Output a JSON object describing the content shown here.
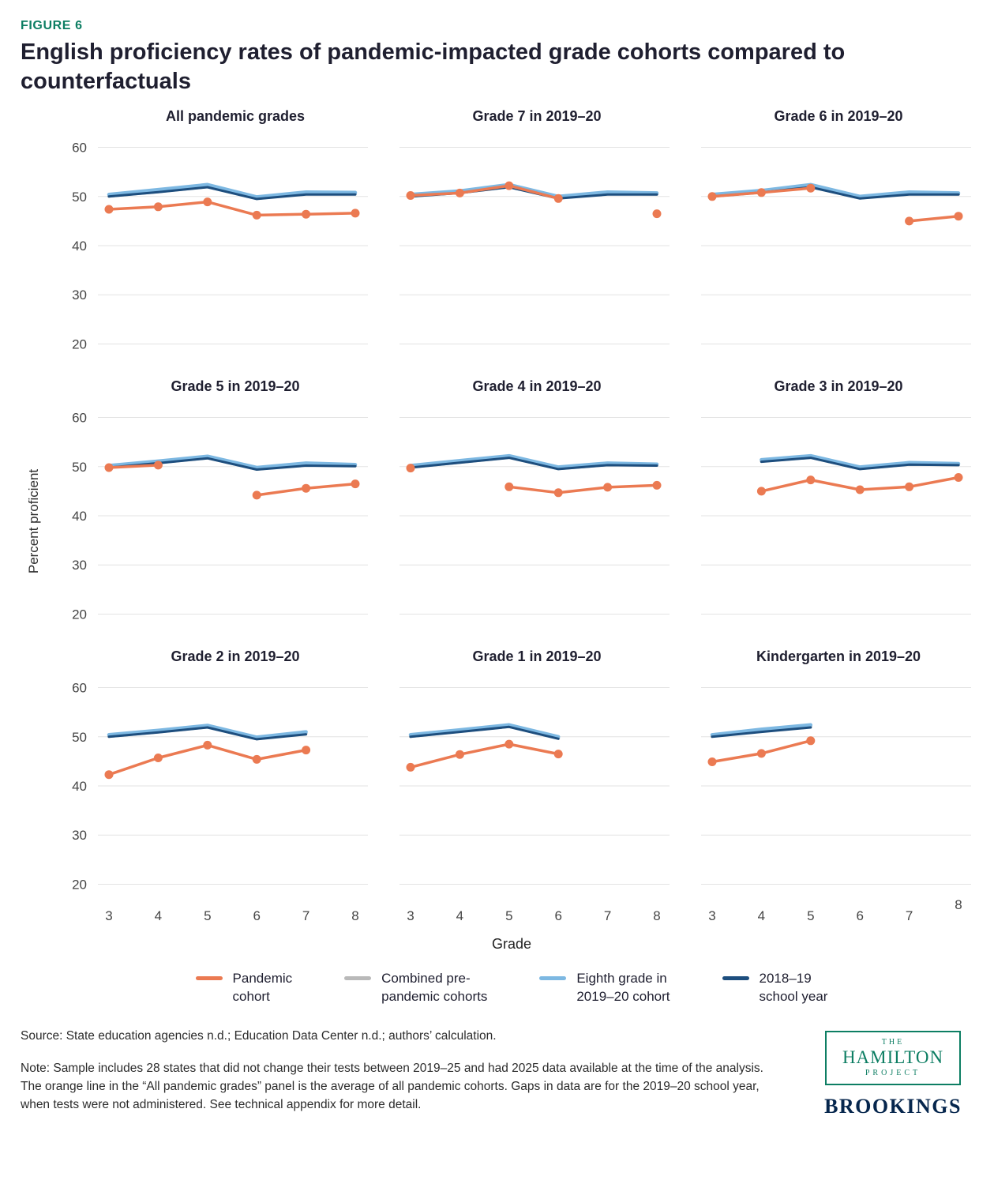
{
  "figure": {
    "label": "FIGURE 6",
    "title": "English proficiency rates of pandemic-impacted grade cohorts compared to counterfactuals"
  },
  "axes": {
    "ylabel": "Percent proficient",
    "xlabel": "Grade",
    "yticks": [
      60,
      50,
      40,
      30,
      20
    ],
    "xticks": [
      3,
      4,
      5,
      6,
      7,
      8
    ],
    "ylim": [
      20,
      60
    ],
    "grid": true
  },
  "colors": {
    "pandemic": "#EB7A52",
    "prepandemic": "#B9B9B9",
    "eighth_grade": "#7DB8E2",
    "school_2018_19": "#1D4E7E",
    "accent_teal": "#0D7E63",
    "brookings_navy": "#06264D",
    "grid": "#E3E3E3"
  },
  "legend": {
    "position": "bottom",
    "items": [
      {
        "label": "Pandemic\ncohort",
        "key": "pandemic"
      },
      {
        "label": "Combined pre-\npandemic cohorts",
        "key": "prepandemic"
      },
      {
        "label": "Eighth grade in\n2019–20 cohort",
        "key": "eighth_grade"
      },
      {
        "label": "2018–19\nschool year",
        "key": "school_2018_19"
      }
    ]
  },
  "chart_data": [
    {
      "type": "line",
      "title": "All pandemic grades",
      "x": [
        3,
        4,
        5,
        6,
        7,
        8
      ],
      "ylim": [
        20,
        60
      ],
      "series": [
        {
          "name": "Combined pre-pandemic cohorts",
          "key": "prepandemic",
          "values": [
            50.1,
            51.0,
            52.0,
            49.6,
            50.6,
            50.6
          ]
        },
        {
          "name": "Eighth grade in 2019–20 cohort",
          "key": "eighth_grade",
          "values": [
            50.4,
            51.4,
            52.4,
            49.9,
            50.9,
            50.8
          ]
        },
        {
          "name": "2018–19 school year",
          "key": "school_2018_19",
          "values": [
            50.0,
            50.9,
            51.9,
            49.5,
            50.4,
            50.4
          ]
        },
        {
          "name": "Pandemic cohort",
          "key": "pandemic",
          "values": [
            47.4,
            47.9,
            48.9,
            46.2,
            46.4,
            46.6
          ]
        }
      ]
    },
    {
      "type": "line",
      "title": "Grade 7 in 2019–20",
      "x": [
        3,
        4,
        5,
        6,
        7,
        8
      ],
      "ylim": [
        20,
        60
      ],
      "series": [
        {
          "name": "Combined pre-pandemic cohorts",
          "key": "prepandemic",
          "values": [
            50.1,
            50.8,
            52.0,
            49.7,
            50.6,
            50.5
          ]
        },
        {
          "name": "Eighth grade in 2019–20 cohort",
          "key": "eighth_grade",
          "values": [
            50.4,
            51.1,
            52.4,
            50.0,
            50.9,
            50.7
          ]
        },
        {
          "name": "2018–19 school year",
          "key": "school_2018_19",
          "values": [
            50.0,
            50.7,
            51.9,
            49.6,
            50.4,
            50.4
          ]
        },
        {
          "name": "Pandemic cohort",
          "key": "pandemic",
          "values": [
            50.2,
            50.7,
            52.2,
            49.6,
            null,
            46.5
          ]
        }
      ]
    },
    {
      "type": "line",
      "title": "Grade 6 in 2019–20",
      "x": [
        3,
        4,
        5,
        6,
        7,
        8
      ],
      "ylim": [
        20,
        60
      ],
      "series": [
        {
          "name": "Combined pre-pandemic cohorts",
          "key": "prepandemic",
          "values": [
            50.1,
            50.9,
            52.0,
            49.7,
            50.6,
            50.5
          ]
        },
        {
          "name": "Eighth grade in 2019–20 cohort",
          "key": "eighth_grade",
          "values": [
            50.4,
            51.2,
            52.4,
            50.0,
            50.9,
            50.7
          ]
        },
        {
          "name": "2018–19 school year",
          "key": "school_2018_19",
          "values": [
            50.0,
            50.8,
            51.9,
            49.6,
            50.4,
            50.4
          ]
        },
        {
          "name": "Pandemic cohort",
          "key": "pandemic",
          "values": [
            50.0,
            50.8,
            51.7,
            null,
            45.0,
            46.0
          ]
        }
      ]
    },
    {
      "type": "line",
      "title": "Grade 5 in 2019–20",
      "x": [
        3,
        4,
        5,
        6,
        7,
        8
      ],
      "ylim": [
        20,
        60
      ],
      "series": [
        {
          "name": "Combined pre-pandemic cohorts",
          "key": "prepandemic",
          "values": [
            49.9,
            50.8,
            51.8,
            49.5,
            50.4,
            50.2
          ]
        },
        {
          "name": "Eighth grade in 2019–20 cohort",
          "key": "eighth_grade",
          "values": [
            50.2,
            51.1,
            52.1,
            49.8,
            50.7,
            50.4
          ]
        },
        {
          "name": "2018–19 school year",
          "key": "school_2018_19",
          "values": [
            49.8,
            50.7,
            51.7,
            49.4,
            50.2,
            50.1
          ]
        },
        {
          "name": "Pandemic cohort",
          "key": "pandemic",
          "values": [
            49.8,
            50.3,
            null,
            44.2,
            45.6,
            46.5
          ]
        }
      ]
    },
    {
      "type": "line",
      "title": "Grade 4 in 2019–20",
      "x": [
        3,
        4,
        5,
        6,
        7,
        8
      ],
      "ylim": [
        20,
        60
      ],
      "series": [
        {
          "name": "Combined pre-pandemic cohorts",
          "key": "prepandemic",
          "values": [
            49.9,
            50.9,
            51.9,
            49.6,
            50.4,
            50.3
          ]
        },
        {
          "name": "Eighth grade in 2019–20 cohort",
          "key": "eighth_grade",
          "values": [
            50.2,
            51.2,
            52.2,
            49.9,
            50.7,
            50.5
          ]
        },
        {
          "name": "2018–19 school year",
          "key": "school_2018_19",
          "values": [
            49.8,
            50.8,
            51.8,
            49.5,
            50.3,
            50.2
          ]
        },
        {
          "name": "Pandemic cohort",
          "key": "pandemic",
          "values": [
            49.7,
            null,
            45.9,
            44.7,
            45.8,
            46.2
          ]
        }
      ]
    },
    {
      "type": "line",
      "title": "Grade 3 in 2019–20",
      "x": [
        3,
        4,
        5,
        6,
        7,
        8
      ],
      "ylim": [
        20,
        60
      ],
      "series": [
        {
          "name": "Combined pre-pandemic cohorts",
          "key": "prepandemic",
          "values": [
            null,
            51.1,
            51.9,
            49.6,
            50.5,
            50.4
          ]
        },
        {
          "name": "Eighth grade in 2019–20 cohort",
          "key": "eighth_grade",
          "values": [
            null,
            51.4,
            52.2,
            49.9,
            50.8,
            50.6
          ]
        },
        {
          "name": "2018–19 school year",
          "key": "school_2018_19",
          "values": [
            null,
            51.0,
            51.8,
            49.5,
            50.4,
            50.3
          ]
        },
        {
          "name": "Pandemic cohort",
          "key": "pandemic",
          "values": [
            null,
            45.0,
            47.3,
            45.3,
            45.9,
            47.8
          ]
        }
      ]
    },
    {
      "type": "line",
      "title": "Grade 2 in 2019–20",
      "x": [
        3,
        4,
        5,
        6,
        7,
        8
      ],
      "ylim": [
        20,
        60
      ],
      "series": [
        {
          "name": "Combined pre-pandemic cohorts",
          "key": "prepandemic",
          "values": [
            50.1,
            51.0,
            52.0,
            49.6,
            50.7,
            null
          ]
        },
        {
          "name": "Eighth grade in 2019–20 cohort",
          "key": "eighth_grade",
          "values": [
            50.4,
            51.3,
            52.3,
            49.9,
            51.0,
            null
          ]
        },
        {
          "name": "2018–19 school year",
          "key": "school_2018_19",
          "values": [
            50.0,
            50.9,
            51.9,
            49.5,
            50.5,
            null
          ]
        },
        {
          "name": "Pandemic cohort",
          "key": "pandemic",
          "values": [
            42.3,
            45.7,
            48.3,
            45.4,
            47.3,
            null
          ]
        }
      ]
    },
    {
      "type": "line",
      "title": "Grade 1 in 2019–20",
      "x": [
        3,
        4,
        5,
        6,
        7,
        8
      ],
      "ylim": [
        20,
        60
      ],
      "series": [
        {
          "name": "Combined pre-pandemic cohorts",
          "key": "prepandemic",
          "values": [
            50.1,
            51.1,
            52.1,
            49.7,
            null,
            null
          ]
        },
        {
          "name": "Eighth grade in 2019–20 cohort",
          "key": "eighth_grade",
          "values": [
            50.4,
            51.4,
            52.4,
            50.0,
            null,
            null
          ]
        },
        {
          "name": "2018–19 school year",
          "key": "school_2018_19",
          "values": [
            50.0,
            51.0,
            52.0,
            49.6,
            null,
            null
          ]
        },
        {
          "name": "Pandemic cohort",
          "key": "pandemic",
          "values": [
            43.8,
            46.4,
            48.5,
            46.5,
            null,
            null
          ]
        }
      ]
    },
    {
      "type": "line",
      "title": "Kindergarten in 2019–20",
      "x": [
        3,
        4,
        5,
        6,
        7,
        8
      ],
      "ylim": [
        20,
        60
      ],
      "series": [
        {
          "name": "Combined pre-pandemic cohorts",
          "key": "prepandemic",
          "values": [
            50.2,
            51.2,
            52.1,
            null,
            null,
            null
          ]
        },
        {
          "name": "Eighth grade in 2019–20 cohort",
          "key": "eighth_grade",
          "values": [
            50.4,
            51.5,
            52.4,
            null,
            null,
            null
          ]
        },
        {
          "name": "2018–19 school year",
          "key": "school_2018_19",
          "values": [
            50.0,
            51.0,
            51.9,
            null,
            null,
            null
          ]
        },
        {
          "name": "Pandemic cohort",
          "key": "pandemic",
          "values": [
            44.9,
            46.6,
            49.2,
            null,
            null,
            null
          ]
        }
      ]
    }
  ],
  "source": "Source: State education agencies n.d.; Education Data Center n.d.; authors’ calculation.",
  "note": "Note: Sample includes 28 states that did not change their tests between 2019–25 and had 2025 data available at the time of the analysis. The orange line in the “All pandemic grades” panel is the average of all pandemic cohorts. Gaps in data are for the 2019–20 school year, when tests were not administered. See technical appendix for more detail.",
  "logos": {
    "hamilton_the": "THE",
    "hamilton_name": "HAMILTON",
    "hamilton_project": "PROJECT",
    "brookings": "BROOKINGS"
  }
}
